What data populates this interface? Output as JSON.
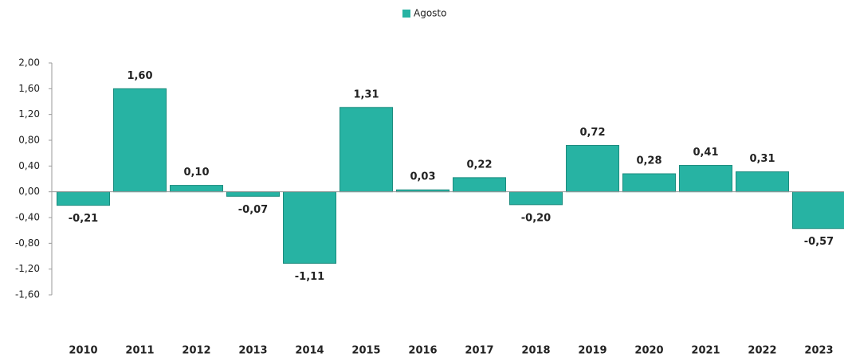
{
  "chart_data": {
    "type": "bar",
    "categories": [
      "2010",
      "2011",
      "2012",
      "2013",
      "2014",
      "2015",
      "2016",
      "2017",
      "2018",
      "2019",
      "2020",
      "2021",
      "2022",
      "2023"
    ],
    "series": [
      {
        "name": "Agosto",
        "color": "#27b3a3",
        "values": [
          -0.21,
          1.6,
          0.1,
          -0.07,
          -1.11,
          1.31,
          0.03,
          0.22,
          -0.2,
          0.72,
          0.28,
          0.41,
          0.31,
          -0.57
        ],
        "value_labels": [
          "-0,21",
          "1,60",
          "0,10",
          "-0,07",
          "-1,11",
          "1,31",
          "0,03",
          "0,22",
          "-0,20",
          "0,72",
          "0,28",
          "0,41",
          "0,31",
          "-0,57"
        ]
      }
    ],
    "ylim": [
      -1.6,
      2.0
    ],
    "yticks": [
      {
        "value": 2.0,
        "label": "2,00"
      },
      {
        "value": 1.6,
        "label": "1,60"
      },
      {
        "value": 1.2,
        "label": "1,20"
      },
      {
        "value": 0.8,
        "label": "0,80"
      },
      {
        "value": 0.4,
        "label": "0,40"
      },
      {
        "value": 0.0,
        "label": "0,00"
      },
      {
        "value": -0.4,
        "label": "-0,40"
      },
      {
        "value": -0.8,
        "label": "-0,80"
      },
      {
        "value": -1.2,
        "label": "-1,20"
      },
      {
        "value": -1.6,
        "label": "-1,60"
      }
    ],
    "grid": false,
    "legend": "top"
  }
}
